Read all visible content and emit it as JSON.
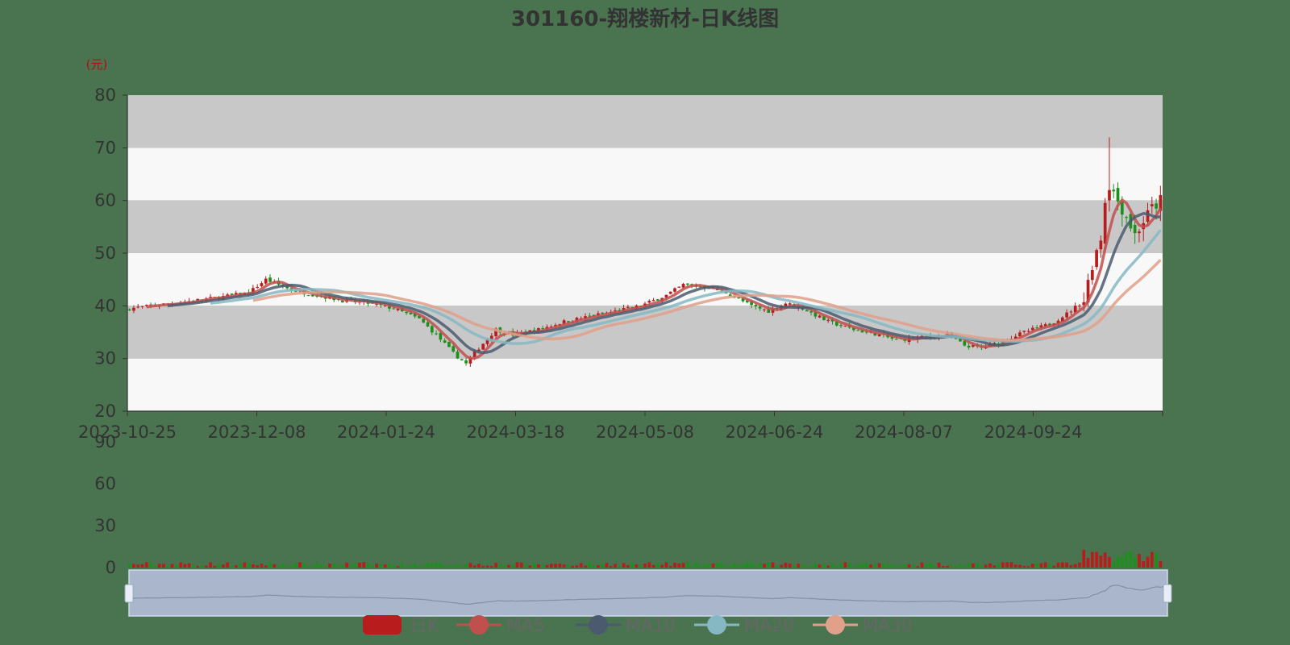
{
  "chart_data": {
    "type": "candlestick",
    "title": "301160-翔楼新材-日K线图",
    "unit_label": "(元)",
    "price_axis": {
      "ylim": [
        20,
        80
      ],
      "ticks": [
        "80",
        "70",
        "60",
        "50",
        "40",
        "30",
        "20"
      ]
    },
    "volume_axis": {
      "ylim": [
        0,
        90
      ],
      "ticks": [
        "90",
        "60",
        "30",
        "0"
      ]
    },
    "x_tick_labels": [
      "2023-10-25",
      "2023-12-08",
      "2024-01-24",
      "2024-03-18",
      "2024-05-08",
      "2024-06-24",
      "2024-08-07",
      "2024-09-24"
    ],
    "legend": [
      "日K",
      "MA5",
      "MA10",
      "MA20",
      "MA30"
    ],
    "colors": {
      "up": "#b81c1c",
      "down": "#1d8f1d",
      "ma5": "#c0504d",
      "ma10": "#4b5a6e",
      "ma20": "#86b8c4",
      "ma30": "#e0a08a",
      "band_dark": "#c8c8c8",
      "band_light": "#f8f8f8"
    },
    "close_anchors": [
      [
        0,
        39.5
      ],
      [
        10,
        40.5
      ],
      [
        20,
        41.5
      ],
      [
        28,
        42.5
      ],
      [
        32,
        45.0
      ],
      [
        38,
        43.0
      ],
      [
        44,
        42.0
      ],
      [
        50,
        41.0
      ],
      [
        56,
        40.5
      ],
      [
        62,
        39.5
      ],
      [
        68,
        37.5
      ],
      [
        72,
        34.5
      ],
      [
        76,
        31.0
      ],
      [
        79,
        29.0
      ],
      [
        82,
        32.0
      ],
      [
        86,
        35.5
      ],
      [
        90,
        34.5
      ],
      [
        96,
        35.5
      ],
      [
        102,
        37.0
      ],
      [
        108,
        38.0
      ],
      [
        114,
        39.0
      ],
      [
        120,
        40.0
      ],
      [
        126,
        42.0
      ],
      [
        130,
        44.0
      ],
      [
        136,
        43.5
      ],
      [
        140,
        42.5
      ],
      [
        146,
        40.0
      ],
      [
        150,
        39.0
      ],
      [
        154,
        40.5
      ],
      [
        158,
        39.5
      ],
      [
        164,
        37.0
      ],
      [
        170,
        35.5
      ],
      [
        176,
        34.5
      ],
      [
        180,
        33.5
      ],
      [
        186,
        34.0
      ],
      [
        192,
        34.5
      ],
      [
        196,
        32.5
      ],
      [
        200,
        32.0
      ],
      [
        204,
        33.0
      ],
      [
        210,
        35.0
      ],
      [
        216,
        36.5
      ],
      [
        220,
        38.5
      ],
      [
        224,
        41.0
      ],
      [
        226,
        48.0
      ],
      [
        228,
        53.0
      ],
      [
        229,
        60.0
      ],
      [
        230,
        63.0
      ],
      [
        232,
        60.0
      ],
      [
        234,
        57.0
      ],
      [
        236,
        53.5
      ],
      [
        238,
        56.0
      ],
      [
        240,
        58.5
      ],
      [
        242,
        60.0
      ]
    ]
  }
}
